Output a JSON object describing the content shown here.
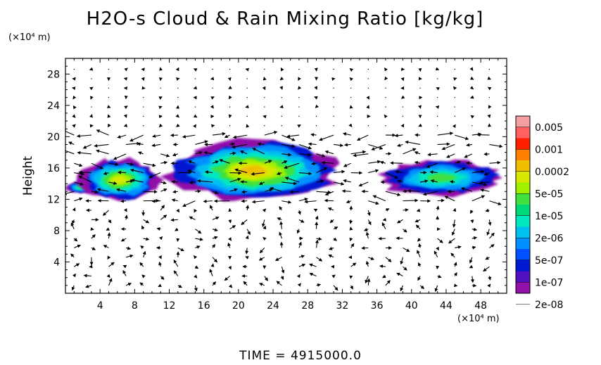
{
  "chart_data": {
    "type": "heatmap",
    "title": "H2O-s Cloud & Rain Mixing Ratio [kg/kg]",
    "ylabel": "Height",
    "x_unit_label": "(×10⁴ m)",
    "y_unit_label": "(×10⁴ m)",
    "footer": "TIME = 4915000.0",
    "xlim": [
      0,
      51
    ],
    "ylim": [
      0,
      30
    ],
    "x_ticks": [
      4,
      8,
      12,
      16,
      20,
      24,
      28,
      32,
      36,
      40,
      44,
      48
    ],
    "y_ticks": [
      4,
      8,
      12,
      16,
      20,
      24,
      28
    ],
    "colorbar": {
      "labels": [
        "0.005",
        "0.001",
        "0.0002",
        "5e-05",
        "1e-05",
        "2e-06",
        "5e-07",
        "1e-07",
        "2e-08"
      ],
      "colors": [
        "#f5a0a0",
        "#ff6060",
        "#ff2000",
        "#ff8000",
        "#f0c000",
        "#d8e800",
        "#a0f000",
        "#40e040",
        "#00d878",
        "#00e8c0",
        "#00c0f0",
        "#0090ff",
        "#0050ff",
        "#0018d0",
        "#5010c0",
        "#9010a8"
      ]
    },
    "cloud_layer": {
      "height_range": [
        12,
        19
      ],
      "regions": [
        {
          "x_range": [
            0,
            3.5
          ],
          "y_range": [
            12.8,
            14.2
          ],
          "max_level": "1e-05"
        },
        {
          "x_range": [
            1.5,
            11
          ],
          "y_range": [
            11.8,
            17.2
          ],
          "max_level": "5e-05"
        },
        {
          "x_range": [
            11.5,
            32
          ],
          "y_range": [
            11.8,
            19.5
          ],
          "max_level": "0.0002"
        },
        {
          "x_range": [
            36,
            51
          ],
          "y_range": [
            12.5,
            17
          ],
          "max_level": "1e-05"
        }
      ]
    },
    "wind_vectors": "arrows on a regular grid; strongest in the 12-20 height band"
  }
}
